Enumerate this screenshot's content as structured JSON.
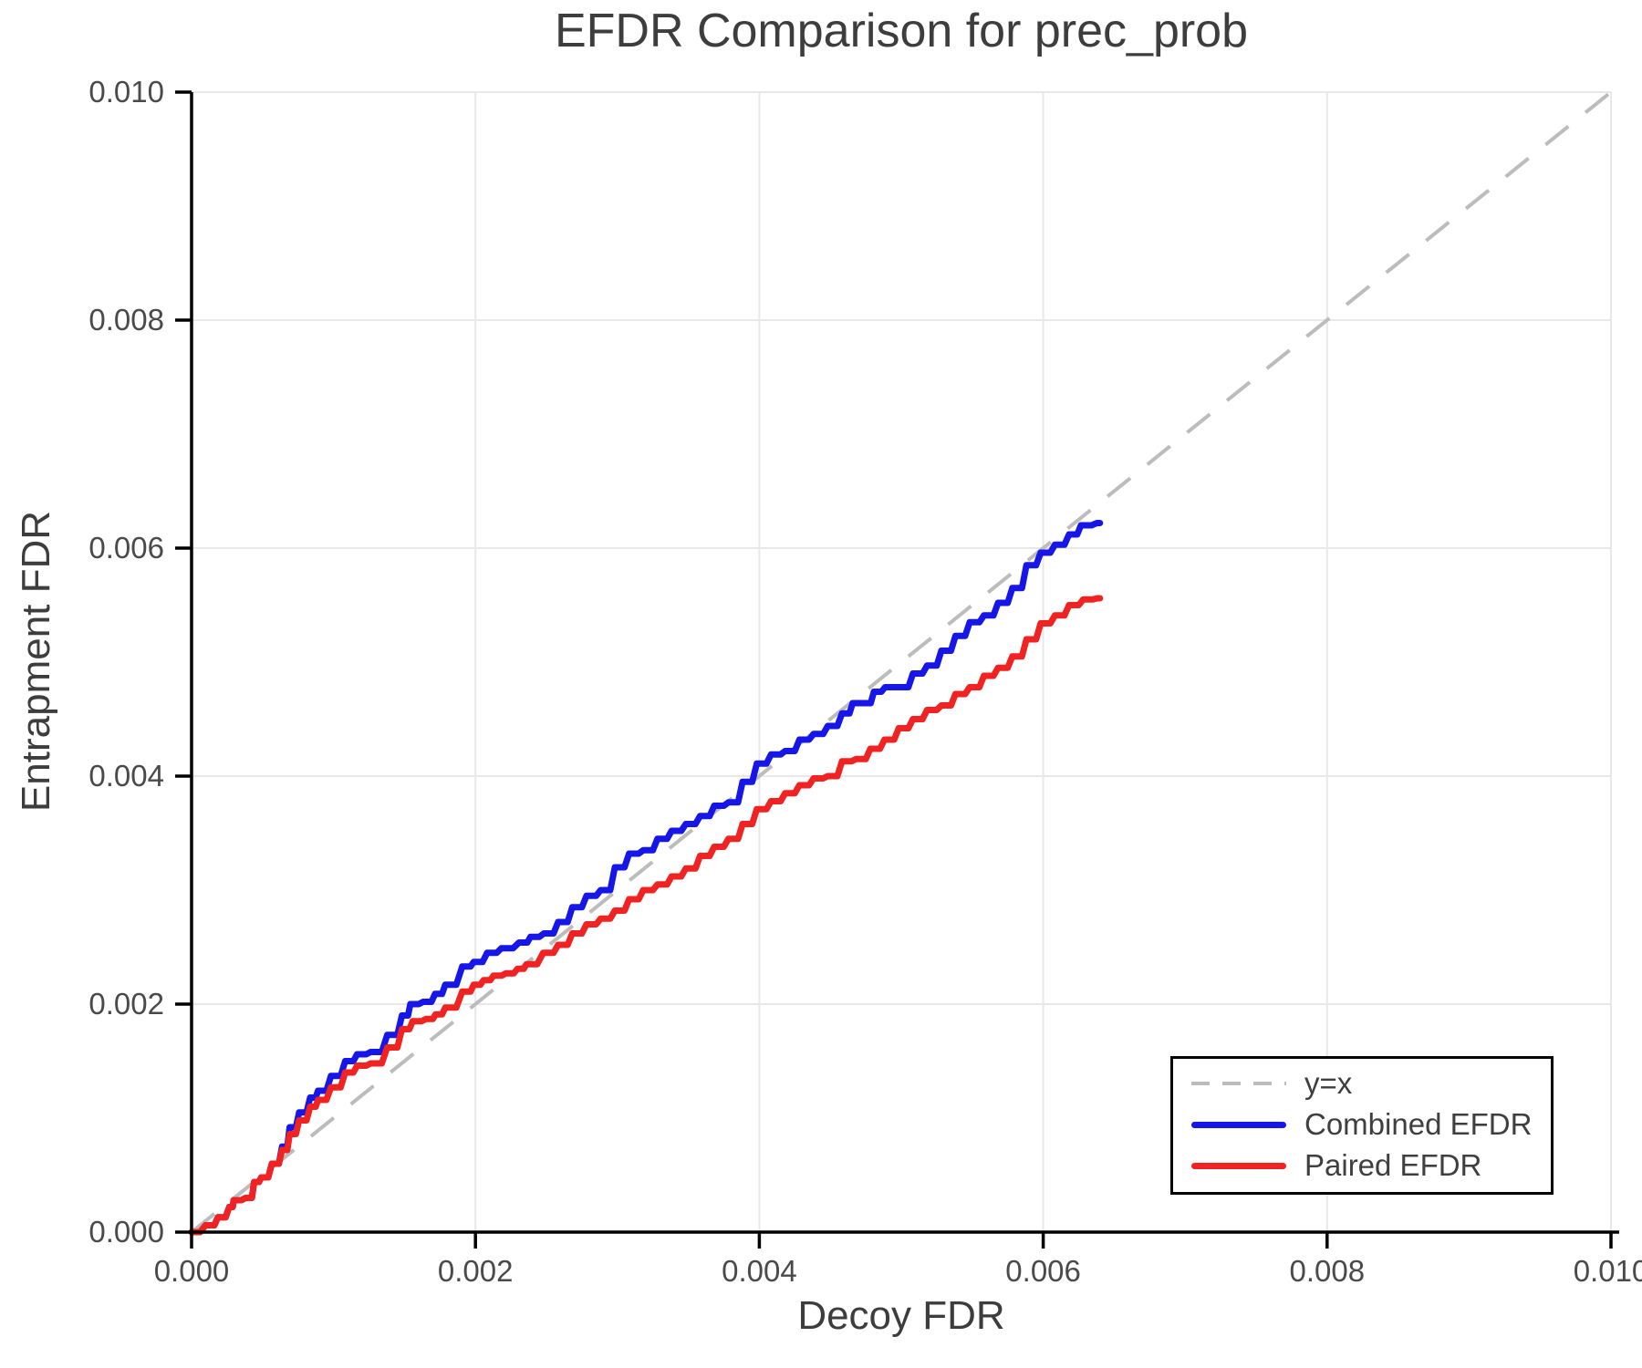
{
  "title": "EFDR Comparison for prec_prob",
  "axes": {
    "x": {
      "label": "Decoy FDR",
      "tick_labels": [
        "0.000",
        "0.002",
        "0.004",
        "0.006",
        "0.008",
        "0.010"
      ],
      "tick_values": [
        0,
        0.002,
        0.004,
        0.006,
        0.008,
        0.01
      ],
      "range": [
        0,
        0.01
      ]
    },
    "y": {
      "label": "Entrapment FDR",
      "tick_labels": [
        "0.000",
        "0.002",
        "0.004",
        "0.006",
        "0.008",
        "0.010"
      ],
      "tick_values": [
        0,
        0.002,
        0.004,
        0.006,
        0.008,
        0.01
      ],
      "range": [
        0,
        0.01
      ]
    }
  },
  "legend": {
    "items": [
      {
        "label": "y=x",
        "style": "dashed",
        "color": "#bcbcbc"
      },
      {
        "label": "Combined EFDR",
        "style": "solid",
        "color": "#1616e8"
      },
      {
        "label": "Paired EFDR",
        "style": "solid",
        "color": "#f02222"
      }
    ]
  },
  "colors": {
    "grid": "#e8e8e8",
    "spine": "#000000",
    "title_text": "#3d3d3d",
    "tick_text": "#4a4a4a",
    "diagonal": "#bcbcbc",
    "combined": "#1616e8",
    "paired": "#f02222",
    "background": "#ffffff"
  },
  "chart_data": {
    "type": "line",
    "title": "EFDR Comparison for prec_prob",
    "xlabel": "Decoy FDR",
    "ylabel": "Entrapment FDR",
    "xlim": [
      0,
      0.01
    ],
    "ylim": [
      0,
      0.01
    ],
    "grid": true,
    "legend_position": "lower right",
    "series": [
      {
        "name": "y=x",
        "role": "reference",
        "style": "dashed",
        "color": "#bcbcbc",
        "points": [
          [
            0,
            0
          ],
          [
            0.01,
            0.01
          ]
        ]
      },
      {
        "name": "Combined EFDR",
        "role": "data",
        "style": "solid",
        "color": "#1616e8",
        "points": [
          [
            0,
            0
          ],
          [
            0.00012,
            6e-05
          ],
          [
            0.0002,
            0.00013
          ],
          [
            0.00028,
            0.00022
          ],
          [
            0.0003,
            0.00028
          ],
          [
            0.0004,
            0.0003
          ],
          [
            0.00045,
            0.00044
          ],
          [
            0.0005,
            0.00048
          ],
          [
            0.00058,
            0.0006
          ],
          [
            0.00065,
            0.00075
          ],
          [
            0.0007,
            0.00092
          ],
          [
            0.00077,
            0.00105
          ],
          [
            0.00085,
            0.00118
          ],
          [
            0.0009,
            0.00124
          ],
          [
            0.001,
            0.00137
          ],
          [
            0.0011,
            0.0015
          ],
          [
            0.00118,
            0.00156
          ],
          [
            0.00128,
            0.00158
          ],
          [
            0.0014,
            0.00173
          ],
          [
            0.0015,
            0.0019
          ],
          [
            0.00155,
            0.002
          ],
          [
            0.00165,
            0.00202
          ],
          [
            0.00173,
            0.00209
          ],
          [
            0.0018,
            0.00217
          ],
          [
            0.00193,
            0.00233
          ],
          [
            0.002,
            0.00237
          ],
          [
            0.0021,
            0.00245
          ],
          [
            0.0022,
            0.00249
          ],
          [
            0.00233,
            0.00254
          ],
          [
            0.0024,
            0.00259
          ],
          [
            0.0025,
            0.00262
          ],
          [
            0.0026,
            0.00272
          ],
          [
            0.0027,
            0.00285
          ],
          [
            0.0028,
            0.00295
          ],
          [
            0.0029,
            0.003
          ],
          [
            0.003,
            0.0032
          ],
          [
            0.0031,
            0.00332
          ],
          [
            0.0032,
            0.00335
          ],
          [
            0.0033,
            0.00345
          ],
          [
            0.0034,
            0.00352
          ],
          [
            0.0035,
            0.00358
          ],
          [
            0.0036,
            0.00365
          ],
          [
            0.0037,
            0.00374
          ],
          [
            0.0038,
            0.00377
          ],
          [
            0.0039,
            0.00395
          ],
          [
            0.004,
            0.00411
          ],
          [
            0.0041,
            0.00419
          ],
          [
            0.0042,
            0.00422
          ],
          [
            0.0043,
            0.00432
          ],
          [
            0.0044,
            0.00437
          ],
          [
            0.0045,
            0.00444
          ],
          [
            0.0046,
            0.00455
          ],
          [
            0.00467,
            0.00464
          ],
          [
            0.00475,
            0.00464
          ],
          [
            0.00482,
            0.00474
          ],
          [
            0.0049,
            0.00478
          ],
          [
            0.005,
            0.00478
          ],
          [
            0.0051,
            0.0049
          ],
          [
            0.0052,
            0.00497
          ],
          [
            0.0053,
            0.0051
          ],
          [
            0.0054,
            0.00523
          ],
          [
            0.0055,
            0.00535
          ],
          [
            0.0056,
            0.00541
          ],
          [
            0.0057,
            0.00552
          ],
          [
            0.0058,
            0.00565
          ],
          [
            0.0059,
            0.00585
          ],
          [
            0.006,
            0.00596
          ],
          [
            0.0061,
            0.00603
          ],
          [
            0.0062,
            0.00612
          ],
          [
            0.00628,
            0.0062
          ],
          [
            0.0064,
            0.00622
          ]
        ]
      },
      {
        "name": "Paired EFDR",
        "role": "data",
        "style": "solid",
        "color": "#f02222",
        "points": [
          [
            0,
            0
          ],
          [
            0.00012,
            6e-05
          ],
          [
            0.0002,
            0.00013
          ],
          [
            0.00028,
            0.00022
          ],
          [
            0.0003,
            0.00028
          ],
          [
            0.0004,
            0.0003
          ],
          [
            0.00045,
            0.00044
          ],
          [
            0.0005,
            0.00048
          ],
          [
            0.00058,
            0.0006
          ],
          [
            0.00065,
            0.00072
          ],
          [
            0.0007,
            0.00086
          ],
          [
            0.00077,
            0.00098
          ],
          [
            0.00085,
            0.0011
          ],
          [
            0.0009,
            0.00116
          ],
          [
            0.001,
            0.00127
          ],
          [
            0.0011,
            0.0014
          ],
          [
            0.00118,
            0.00146
          ],
          [
            0.00128,
            0.00148
          ],
          [
            0.0014,
            0.00162
          ],
          [
            0.0015,
            0.00178
          ],
          [
            0.00157,
            0.00185
          ],
          [
            0.00167,
            0.00187
          ],
          [
            0.00173,
            0.00191
          ],
          [
            0.0018,
            0.00197
          ],
          [
            0.00193,
            0.00211
          ],
          [
            0.002,
            0.00217
          ],
          [
            0.00207,
            0.00221
          ],
          [
            0.00214,
            0.00225
          ],
          [
            0.00223,
            0.00227
          ],
          [
            0.00231,
            0.00231
          ],
          [
            0.00237,
            0.00235
          ],
          [
            0.0025,
            0.00245
          ],
          [
            0.0026,
            0.00252
          ],
          [
            0.0027,
            0.00262
          ],
          [
            0.0028,
            0.0027
          ],
          [
            0.0029,
            0.00275
          ],
          [
            0.003,
            0.00282
          ],
          [
            0.0031,
            0.00292
          ],
          [
            0.0032,
            0.003
          ],
          [
            0.0033,
            0.00305
          ],
          [
            0.0034,
            0.00312
          ],
          [
            0.0035,
            0.00319
          ],
          [
            0.0036,
            0.0033
          ],
          [
            0.0037,
            0.00338
          ],
          [
            0.0038,
            0.00345
          ],
          [
            0.0039,
            0.00358
          ],
          [
            0.004,
            0.00371
          ],
          [
            0.0041,
            0.00378
          ],
          [
            0.0042,
            0.00385
          ],
          [
            0.0043,
            0.00392
          ],
          [
            0.0044,
            0.00398
          ],
          [
            0.0045,
            0.004
          ],
          [
            0.0046,
            0.00413
          ],
          [
            0.0047,
            0.00415
          ],
          [
            0.0048,
            0.00424
          ],
          [
            0.0049,
            0.00432
          ],
          [
            0.005,
            0.00442
          ],
          [
            0.0051,
            0.0045
          ],
          [
            0.0052,
            0.00458
          ],
          [
            0.0053,
            0.00462
          ],
          [
            0.0054,
            0.00472
          ],
          [
            0.0055,
            0.00478
          ],
          [
            0.0056,
            0.00488
          ],
          [
            0.0057,
            0.00495
          ],
          [
            0.0058,
            0.00505
          ],
          [
            0.0059,
            0.0052
          ],
          [
            0.006,
            0.00534
          ],
          [
            0.0061,
            0.00541
          ],
          [
            0.0062,
            0.0055
          ],
          [
            0.0063,
            0.00555
          ],
          [
            0.0064,
            0.00556
          ]
        ]
      }
    ]
  }
}
